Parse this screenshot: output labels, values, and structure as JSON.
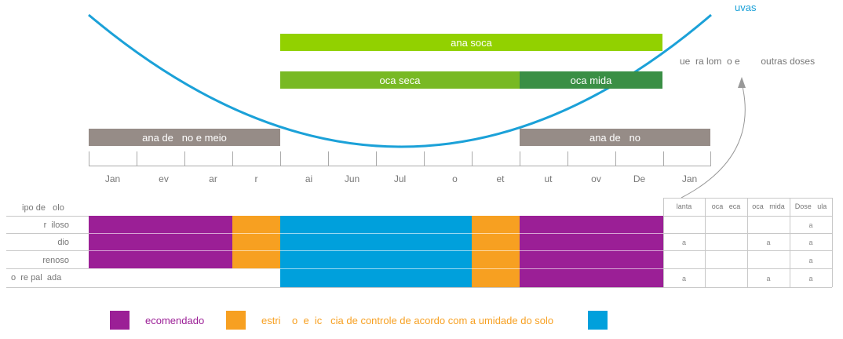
{
  "curve_label": "uvas",
  "bars": {
    "ana_soca": "ana soca",
    "oca_seca": "oca seca",
    "oca_mida": "oca  mida",
    "left_gray": "ana de   no e meio",
    "right_gray": "ana de   no"
  },
  "side_note": "ue  ra lom  o e        outras doses",
  "months": [
    "Jan",
    "ev",
    "ar",
    "r",
    "ai",
    "Jun",
    "Jul",
    "o",
    "et",
    "ut",
    "ov",
    "De",
    "Jan"
  ],
  "soil": {
    "header": "ipo de   olo",
    "rows": [
      {
        "label": "r  iloso",
        "segments": [
          "purple",
          "orange",
          "blue",
          "orange",
          "purple"
        ],
        "cells": [
          "",
          "",
          "",
          "a"
        ]
      },
      {
        "label": "dio",
        "segments": [
          "purple",
          "orange",
          "blue",
          "orange",
          "purple"
        ],
        "cells": [
          "a",
          "",
          "a",
          "a"
        ]
      },
      {
        "label": "renoso",
        "segments": [
          "purple",
          "orange",
          "blue",
          "orange",
          "purple"
        ],
        "cells": [
          "",
          "",
          "",
          "a"
        ]
      },
      {
        "label": "o  re pal  ada",
        "segments": [
          "none",
          "none",
          "blue",
          "orange",
          "purple"
        ],
        "cells": [
          "a",
          "",
          "a",
          "a"
        ]
      }
    ],
    "table_headers": [
      "lanta",
      "oca   eca",
      "oca   mida",
      "Dose   ula"
    ]
  },
  "legend": {
    "recommended": "ecomendado",
    "restriction": "estri    o  e  ic   cia de controle de acordo com a umidade do solo"
  },
  "colors": {
    "purple": "#9b1f96",
    "orange": "#f7a021",
    "blue": "#00a0dc",
    "lime": "#92d100",
    "green_mid": "#78b924",
    "green_dark": "#3a8f45",
    "gray": "#968c87",
    "curve": "#1ba1d8"
  }
}
